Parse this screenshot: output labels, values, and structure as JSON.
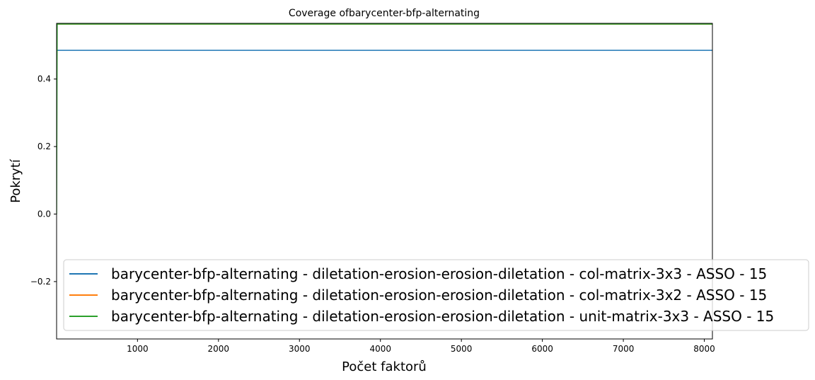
{
  "chart_data": {
    "type": "line",
    "title": "Coverage ofbarycenter-bfp-alternating",
    "xlabel": "Počet faktorů",
    "ylabel": "Pokrytí",
    "xlim": [
      1,
      8100
    ],
    "ylim": [
      -0.37,
      0.565
    ],
    "xticks": [
      1000,
      2000,
      3000,
      4000,
      5000,
      6000,
      7000,
      8000
    ],
    "xtick_labels": [
      "1000",
      "2000",
      "3000",
      "4000",
      "5000",
      "6000",
      "7000",
      "8000"
    ],
    "yticks": [
      -0.2,
      0.0,
      0.2,
      0.4
    ],
    "ytick_labels": [
      "−0.2",
      "0.0",
      "0.2",
      "0.4"
    ],
    "grid": false,
    "legend_position": "lower-right",
    "series": [
      {
        "name": "barycenter-bfp-alternating - diletation-erosion-erosion-diletation - col-matrix-3x3 - ASSO - 15",
        "color": "#1f77b4",
        "x": [
          1,
          8100
        ],
        "y": [
          0.485,
          0.485
        ]
      },
      {
        "name": "barycenter-bfp-alternating - diletation-erosion-erosion-diletation - col-matrix-3x2 - ASSO - 15",
        "color": "#ff7f0e",
        "x": [
          1,
          8100
        ],
        "y": [
          0.563,
          0.563
        ]
      },
      {
        "name": "barycenter-bfp-alternating - diletation-erosion-erosion-diletation - unit-matrix-3x3 - ASSO - 15",
        "color": "#2ca02c",
        "x": [
          1,
          8,
          8100
        ],
        "y": [
          0.0,
          0.563,
          0.563
        ]
      }
    ]
  }
}
